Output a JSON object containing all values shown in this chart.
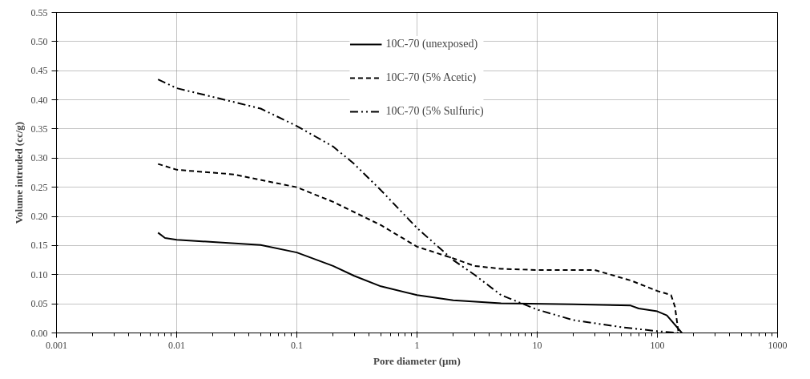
{
  "chart_data": {
    "type": "line",
    "xlabel": "Pore diameter (µm)",
    "ylabel": "Volume intruded (cc/g)",
    "log": "x",
    "grid": true,
    "legend": "top",
    "marker": "none",
    "xlim": [
      0.001,
      1000
    ],
    "xticks": [
      0.001,
      0.01,
      0.1,
      1,
      10,
      100,
      1000
    ],
    "ylim": [
      0,
      0.55
    ],
    "yticks": [
      {
        "value": 0,
        "label": "0.00"
      },
      {
        "value": 0.05,
        "label": "0.05"
      },
      {
        "value": 0.1,
        "label": "0.10"
      },
      {
        "value": 0.15,
        "label": "0.15"
      },
      {
        "value": 0.2,
        "label": "0.20"
      },
      {
        "value": 0.25,
        "label": "0.25"
      },
      {
        "value": 0.3,
        "label": "0.30"
      },
      {
        "value": 0.35,
        "label": "0.35"
      },
      {
        "value": 0.4,
        "label": "0.40"
      },
      {
        "value": 0.45,
        "label": "0.45"
      },
      {
        "value": 0.5,
        "label": "0.50"
      },
      {
        "value": 0.55,
        "label": "0.55"
      }
    ],
    "series": [
      {
        "name": "10C-70 (unexposed)",
        "color": "#000000",
        "line_style": "solid",
        "x": [
          0.007,
          0.008,
          0.01,
          0.02,
          0.05,
          0.1,
          0.2,
          0.3,
          0.5,
          1,
          2,
          5,
          20,
          60,
          70,
          100,
          120,
          160
        ],
        "values": [
          0.172,
          0.163,
          0.16,
          0.156,
          0.151,
          0.138,
          0.115,
          0.098,
          0.08,
          0.065,
          0.056,
          0.051,
          0.049,
          0.047,
          0.042,
          0.037,
          0.03,
          0.0
        ]
      },
      {
        "name": "10C-70 (5% Acetic)",
        "color": "#000000",
        "line_style": "dashed",
        "x": [
          0.007,
          0.01,
          0.03,
          0.1,
          0.2,
          0.5,
          1,
          2,
          3,
          5,
          10,
          30,
          60,
          100,
          130,
          140,
          150
        ],
        "values": [
          0.29,
          0.28,
          0.272,
          0.25,
          0.225,
          0.185,
          0.148,
          0.128,
          0.115,
          0.11,
          0.108,
          0.108,
          0.09,
          0.072,
          0.065,
          0.045,
          0.0
        ]
      },
      {
        "name": "10C-70 (5% Sulfuric)",
        "color": "#000000",
        "line_style": "dashdot",
        "x": [
          0.007,
          0.01,
          0.02,
          0.05,
          0.1,
          0.2,
          0.3,
          0.5,
          1,
          2,
          3,
          5,
          10,
          20,
          50,
          100,
          150
        ],
        "values": [
          0.435,
          0.42,
          0.405,
          0.385,
          0.355,
          0.32,
          0.29,
          0.245,
          0.18,
          0.125,
          0.1,
          0.065,
          0.04,
          0.022,
          0.01,
          0.003,
          0.0
        ]
      }
    ]
  }
}
